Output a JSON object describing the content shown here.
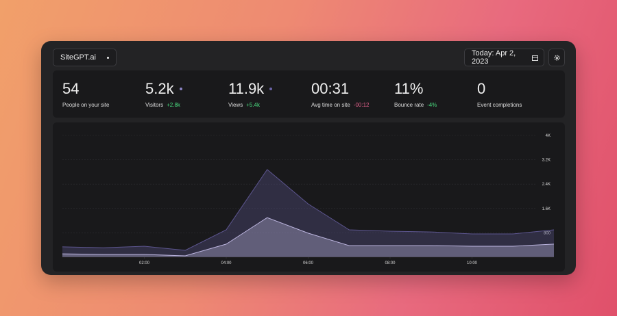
{
  "header": {
    "site": "SiteGPT.ai",
    "date": "Today: Apr 2, 2023"
  },
  "stats": [
    {
      "value": "54",
      "label": "People on your site"
    },
    {
      "value": "5.2k",
      "label": "Visitors",
      "change": "+2.8k",
      "change_color": "#4ade80",
      "dot_color": "#8b84c4"
    },
    {
      "value": "11.9k",
      "label": "Views",
      "change": "+5.4k",
      "change_color": "#4ade80",
      "dot_color": "#6b64a8"
    },
    {
      "value": "00:31",
      "label": "Avg time on site",
      "change": "-00:12",
      "change_color": "#e0608a"
    },
    {
      "value": "11%",
      "label": "Bounce rate",
      "change": "-4%",
      "change_color": "#4ade80"
    },
    {
      "value": "0",
      "label": "Event completions"
    }
  ],
  "chart_data": {
    "type": "area",
    "x": [
      0,
      1,
      2,
      3,
      4,
      5,
      6,
      7,
      8,
      9,
      10,
      11,
      12
    ],
    "xlim": [
      0,
      12
    ],
    "xticks": [
      {
        "value": 2,
        "label": "02:00"
      },
      {
        "value": 4,
        "label": "04:00"
      },
      {
        "value": 6,
        "label": "06:00"
      },
      {
        "value": 8,
        "label": "08:00"
      },
      {
        "value": 10,
        "label": "10:00"
      }
    ],
    "ylim": [
      0,
      4000
    ],
    "yticks": [
      800,
      {
        "value": 1600,
        "label": "1.6K"
      },
      {
        "value": 2400,
        "label": "2.4K"
      },
      {
        "value": 3200,
        "label": "3.2K"
      },
      {
        "value": 4000,
        "label": "4K"
      }
    ],
    "grid": true,
    "series": [
      {
        "color": "#5d5690",
        "values": [
          340,
          310,
          360,
          225,
          900,
          2880,
          1750,
          900,
          855,
          830,
          765,
          765,
          900
        ]
      },
      {
        "color": "#bdb6e0",
        "values": [
          110,
          90,
          90,
          45,
          430,
          1300,
          790,
          380,
          380,
          380,
          360,
          360,
          430
        ]
      }
    ]
  }
}
